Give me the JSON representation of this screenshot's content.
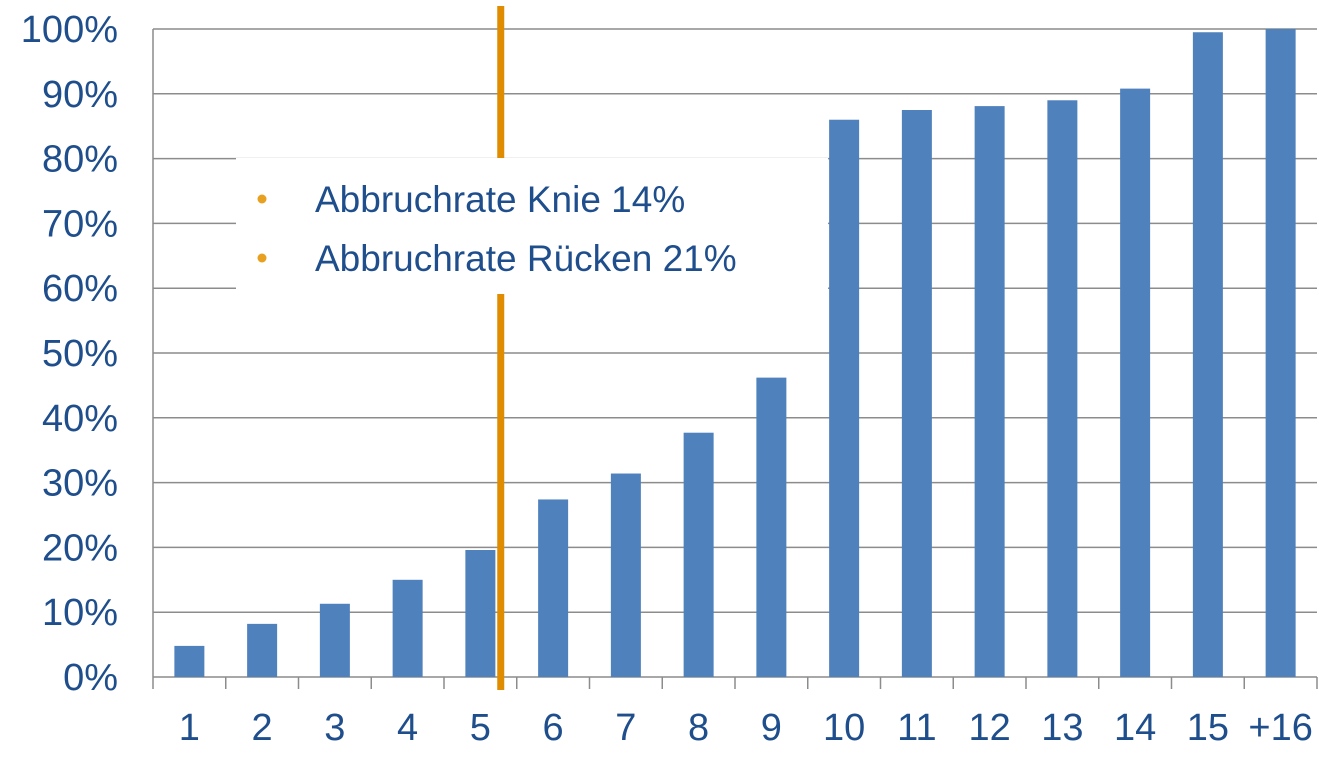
{
  "colors": {
    "bar": "#4f81bd",
    "marker_line": "#e08c00",
    "text": "#1f4e8c",
    "grid": "#8c8c8c",
    "bullet": "#e8a020"
  },
  "chart_data": {
    "type": "bar",
    "categories": [
      "1",
      "2",
      "3",
      "4",
      "5",
      "6",
      "7",
      "8",
      "9",
      "10",
      "11",
      "12",
      "13",
      "14",
      "15",
      "+16"
    ],
    "values": [
      4.8,
      8.2,
      11.3,
      15.0,
      19.6,
      27.4,
      31.4,
      37.7,
      46.2,
      86.0,
      87.5,
      88.1,
      89.0,
      90.8,
      99.5,
      100
    ],
    "ylim": [
      0,
      100
    ],
    "y_ticks": [
      0,
      10,
      20,
      30,
      40,
      50,
      60,
      70,
      80,
      90,
      100
    ],
    "y_tick_labels": [
      "0%",
      "10%",
      "20%",
      "30%",
      "40%",
      "50%",
      "60%",
      "70%",
      "80%",
      "90%",
      "100%"
    ],
    "grid": true,
    "marker_after_category": "5",
    "annotations": [
      "Abbruchrate Knie 14%",
      "Abbruchrate Rücken 21%"
    ]
  }
}
